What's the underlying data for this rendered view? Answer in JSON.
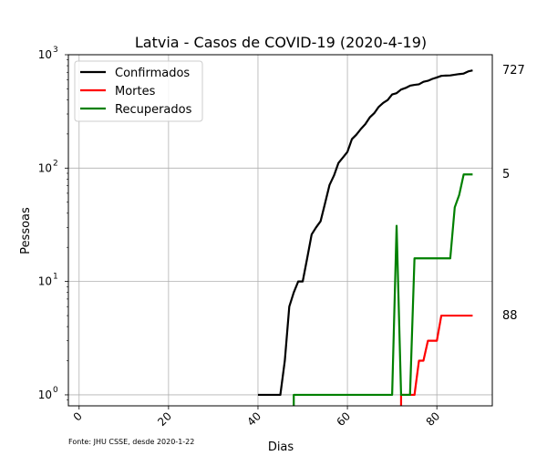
{
  "chart_data": {
    "type": "line",
    "title": "Latvia - Casos de COVID-19 (2020-4-19)",
    "xlabel": "Dias",
    "ylabel": "Pessoas",
    "yscale": "log",
    "xlim": [
      -2.4,
      92.4
    ],
    "ylim": [
      0.8,
      1000
    ],
    "xticks": [
      0,
      20,
      40,
      60,
      80
    ],
    "yticks": [
      {
        "value": 1,
        "base": "10",
        "exp": "0"
      },
      {
        "value": 10,
        "base": "10",
        "exp": "1"
      },
      {
        "value": 100,
        "base": "10",
        "exp": "2"
      },
      {
        "value": 1000,
        "base": "10",
        "exp": "3"
      }
    ],
    "grid": true,
    "legend_position": "upper-left",
    "source_note": "Fonte: JHU CSSE, desde 2020-1-22",
    "end_labels": [
      "727",
      "88",
      "5"
    ],
    "series": [
      {
        "name": "Confirmados",
        "color": "#000000",
        "points": [
          [
            40,
            1
          ],
          [
            41,
            1
          ],
          [
            42,
            1
          ],
          [
            43,
            1
          ],
          [
            44,
            1
          ],
          [
            45,
            1
          ],
          [
            46,
            2
          ],
          [
            47,
            6
          ],
          [
            48,
            8
          ],
          [
            49,
            10
          ],
          [
            50,
            10
          ],
          [
            51,
            16
          ],
          [
            52,
            26
          ],
          [
            53,
            30
          ],
          [
            54,
            34
          ],
          [
            55,
            49
          ],
          [
            56,
            71
          ],
          [
            57,
            86
          ],
          [
            58,
            111
          ],
          [
            59,
            124
          ],
          [
            60,
            139
          ],
          [
            61,
            180
          ],
          [
            62,
            197
          ],
          [
            63,
            221
          ],
          [
            64,
            244
          ],
          [
            65,
            280
          ],
          [
            66,
            305
          ],
          [
            67,
            347
          ],
          [
            68,
            376
          ],
          [
            69,
            398
          ],
          [
            70,
            446
          ],
          [
            71,
            458
          ],
          [
            72,
            493
          ],
          [
            73,
            509
          ],
          [
            74,
            533
          ],
          [
            75,
            542
          ],
          [
            76,
            548
          ],
          [
            77,
            577
          ],
          [
            78,
            589
          ],
          [
            79,
            612
          ],
          [
            80,
            630
          ],
          [
            81,
            651
          ],
          [
            82,
            655
          ],
          [
            83,
            657
          ],
          [
            84,
            666
          ],
          [
            85,
            675
          ],
          [
            86,
            682
          ],
          [
            87,
            712
          ],
          [
            88,
            727
          ]
        ]
      },
      {
        "name": "Mortes",
        "color": "#ff0000",
        "points": [
          [
            72,
            0.5
          ],
          [
            72,
            1
          ],
          [
            73,
            1
          ],
          [
            74,
            1
          ],
          [
            75,
            1
          ],
          [
            76,
            2
          ],
          [
            77,
            2
          ],
          [
            78,
            3
          ],
          [
            79,
            3
          ],
          [
            80,
            3
          ],
          [
            81,
            5
          ],
          [
            82,
            5
          ],
          [
            83,
            5
          ],
          [
            84,
            5
          ],
          [
            85,
            5
          ],
          [
            86,
            5
          ],
          [
            87,
            5
          ],
          [
            88,
            5
          ]
        ]
      },
      {
        "name": "Recuperados",
        "color": "#008000",
        "points": [
          [
            48,
            0.5
          ],
          [
            48,
            1
          ],
          [
            55,
            1
          ],
          [
            60,
            1
          ],
          [
            65,
            1
          ],
          [
            69,
            1
          ],
          [
            70,
            1
          ],
          [
            71,
            31
          ],
          [
            72,
            1
          ],
          [
            73,
            1
          ],
          [
            74,
            1
          ],
          [
            75,
            16
          ],
          [
            76,
            16
          ],
          [
            80,
            16
          ],
          [
            83,
            16
          ],
          [
            84,
            45
          ],
          [
            85,
            58
          ],
          [
            86,
            88
          ],
          [
            87,
            88
          ],
          [
            88,
            88
          ]
        ]
      }
    ]
  }
}
